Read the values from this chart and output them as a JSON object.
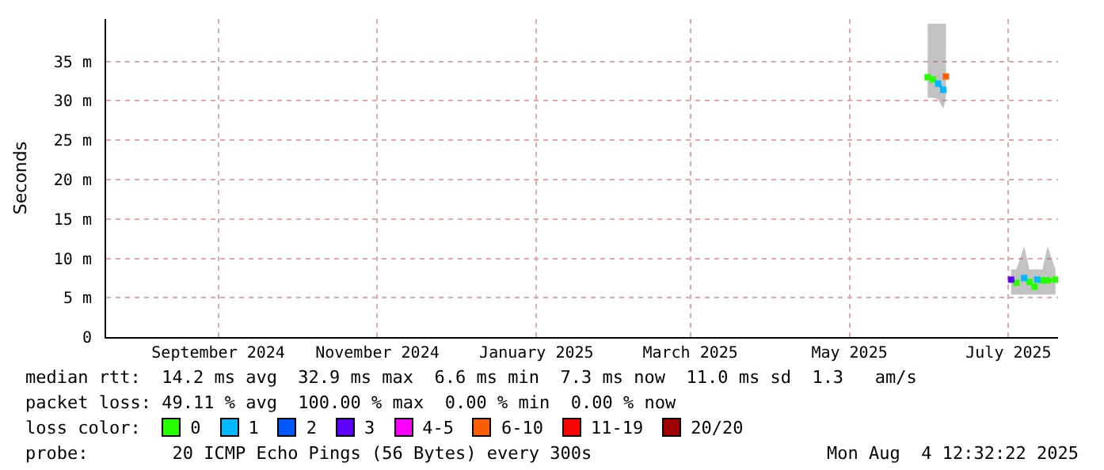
{
  "chart_data": {
    "type": "line",
    "ylabel": "Seconds",
    "x": [
      "2025-06-15",
      "2025-06-17",
      "2025-06-19",
      "2025-06-21",
      "2025-06-22",
      "2025-07-17",
      "2025-07-19",
      "2025-07-22",
      "2025-07-24",
      "2025-07-26",
      "2025-07-27",
      "2025-07-29",
      "2025-07-31",
      "2025-08-03"
    ],
    "xlim": [
      "2024-08-04",
      "2025-08-04"
    ],
    "xticks": [
      {
        "value": "2024-09-16",
        "label": "September 2024"
      },
      {
        "value": "2024-11-16",
        "label": "November 2024"
      },
      {
        "value": "2025-01-16",
        "label": "January 2025"
      },
      {
        "value": "2025-03-16",
        "label": "March 2025"
      },
      {
        "value": "2025-05-16",
        "label": "May 2025"
      },
      {
        "value": "2025-07-16",
        "label": "July 2025"
      }
    ],
    "ylim": [
      0,
      40.4
    ],
    "yticks": [
      0,
      {
        "value": 5,
        "label": "5 m"
      },
      {
        "value": 10,
        "label": "10 m"
      },
      {
        "value": 15,
        "label": "15 m"
      },
      {
        "value": 20,
        "label": "20 m"
      },
      {
        "value": 25,
        "label": "25 m"
      },
      {
        "value": 30,
        "label": "30 m"
      },
      {
        "value": 35,
        "label": "35 m"
      }
    ],
    "grid": true,
    "marker": "square",
    "legend": "bottom",
    "legend_title": "loss color:",
    "series": [
      {
        "name": "0",
        "color": "#26ff00",
        "values": [
          33.0,
          32.7,
          null,
          null,
          null,
          null,
          6.9,
          null,
          7.0,
          6.4,
          null,
          7.2,
          7.2,
          7.3
        ],
        "lower": [
          30.4,
          30.4,
          30.2,
          29.0,
          30.4,
          5.4,
          5.4,
          5.4,
          5.4,
          5.4,
          5.4,
          5.4,
          5.4,
          5.4
        ],
        "upper": [
          39.8,
          39.8,
          39.8,
          39.8,
          39.8,
          8.6,
          8.6,
          11.5,
          8.6,
          8.6,
          8.6,
          8.6,
          11.5,
          8.6
        ]
      },
      {
        "name": "1",
        "color": "#00b8ff",
        "values": [
          null,
          null,
          32.2,
          31.4,
          null,
          null,
          null,
          7.5,
          null,
          null,
          7.3,
          null,
          null,
          null
        ]
      },
      {
        "name": "2",
        "color": "#0059ff",
        "values": [
          null,
          null,
          null,
          null,
          null,
          null,
          null,
          null,
          null,
          null,
          null,
          null,
          null,
          null
        ]
      },
      {
        "name": "3",
        "color": "#5e00ff",
        "values": [
          null,
          null,
          null,
          null,
          null,
          7.3,
          null,
          null,
          null,
          null,
          null,
          null,
          null,
          null
        ]
      },
      {
        "name": "4-5",
        "color": "#ff00ff",
        "values": [
          null,
          null,
          null,
          null,
          null,
          null,
          null,
          null,
          null,
          null,
          null,
          null,
          null,
          null
        ]
      },
      {
        "name": "6-10",
        "color": "#ff5e00",
        "values": [
          null,
          null,
          null,
          null,
          33.1,
          null,
          null,
          null,
          null,
          null,
          null,
          null,
          null,
          null
        ]
      },
      {
        "name": "11-19",
        "color": "#ff0000",
        "values": [
          null,
          null,
          null,
          null,
          null,
          null,
          null,
          null,
          null,
          null,
          null,
          null,
          null,
          null
        ]
      },
      {
        "name": "20/20",
        "color": "#a10000",
        "values": [
          null,
          null,
          null,
          null,
          null,
          null,
          null,
          null,
          null,
          null,
          null,
          null,
          null,
          null
        ]
      }
    ],
    "annotations": [
      "median rtt:  14.2 ms avg  32.9 ms max  6.6 ms min  7.3 ms now  11.0 ms sd  1.3   am/s",
      "packet loss: 49.11 % avg  100.00 % max  0.00 % min  0.00 % now",
      "probe:        20 ICMP Echo Pings (56 Bytes) every 300s",
      "Mon Aug  4 12:32:22 2025"
    ]
  }
}
